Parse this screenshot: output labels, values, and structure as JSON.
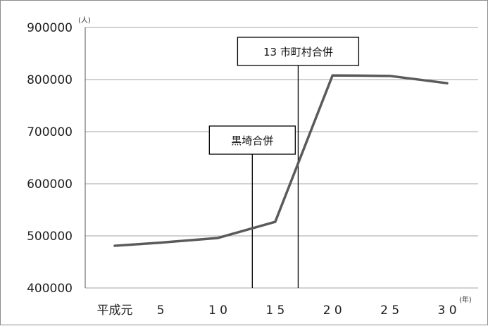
{
  "chart_data": {
    "type": "line",
    "y_unit": "(人)",
    "x_unit": "(年)",
    "x": [
      1,
      5,
      10,
      15,
      20,
      25,
      30
    ],
    "x_tick_labels": [
      {
        "x": 1,
        "label": "平成元"
      },
      {
        "x": 5,
        "label": "5"
      },
      {
        "x": 10,
        "label": "1 0"
      },
      {
        "x": 15,
        "label": "1 5"
      },
      {
        "x": 20,
        "label": "2 0"
      },
      {
        "x": 25,
        "label": "2 5"
      },
      {
        "x": 30,
        "label": "3 0"
      }
    ],
    "y_ticks": [
      {
        "value": 400000,
        "label": "400000"
      },
      {
        "value": 500000,
        "label": "500000"
      },
      {
        "value": 600000,
        "label": "600000"
      },
      {
        "value": 700000,
        "label": "700000"
      },
      {
        "value": 800000,
        "label": "800000"
      },
      {
        "value": 900000,
        "label": "900000"
      }
    ],
    "ylim": [
      400000,
      900000
    ],
    "xlim": [
      1,
      30
    ],
    "grid": true,
    "series": [
      {
        "values": [
          481000,
          487000,
          496000,
          527000,
          808000,
          807000,
          793000
        ],
        "color": "#5a5a5a"
      }
    ],
    "annotations": [
      {
        "x": 13,
        "label": "黒埼合併"
      },
      {
        "x": 17,
        "label": "13 市町村合併"
      }
    ]
  }
}
